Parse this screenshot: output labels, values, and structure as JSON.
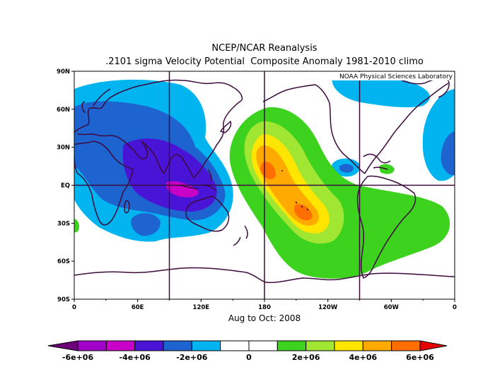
{
  "title": {
    "line1": "NCEP/NCAR Reanalysis",
    "line2": ".2101 sigma Velocity Potential  Composite Anomaly 1981-2010 climo"
  },
  "credit": "NOAA Physical Sciences Laboratory",
  "period_label": "Aug to Oct: 2008",
  "axes": {
    "lat_ticks": [
      "90N",
      "60N",
      "30N",
      "EQ",
      "30S",
      "60S",
      "90S"
    ],
    "lon_ticks": [
      "0",
      "60E",
      "120E",
      "180",
      "120W",
      "60W",
      "0"
    ]
  },
  "colorbar": {
    "labels": [
      "-6e+06",
      "-4e+06",
      "-2e+06",
      "0",
      "2e+06",
      "4e+06",
      "6e+06"
    ],
    "colors": [
      "#a000c8",
      "#c800c8",
      "#4a14d6",
      "#1e64d0",
      "#00b4f0",
      "#ffffff",
      "#ffffff",
      "#3cd21e",
      "#a0e632",
      "#ffe600",
      "#ffaa00",
      "#ff6e00"
    ],
    "low_end_color": "#6e007a",
    "high_end_color": "#e60000"
  },
  "map": {
    "field": "Velocity Potential Anomaly",
    "colors": {
      "cyan": "#00b4f0",
      "blue": "#1e64d0",
      "indigo": "#4a14d6",
      "magenta": "#c800c8",
      "green": "#3cd21e",
      "yellowgreen": "#a0e632",
      "yellow": "#ffe600",
      "orange": "#ffaa00",
      "redorange": "#ff6e00",
      "coast": "#3c0a3c"
    }
  }
}
